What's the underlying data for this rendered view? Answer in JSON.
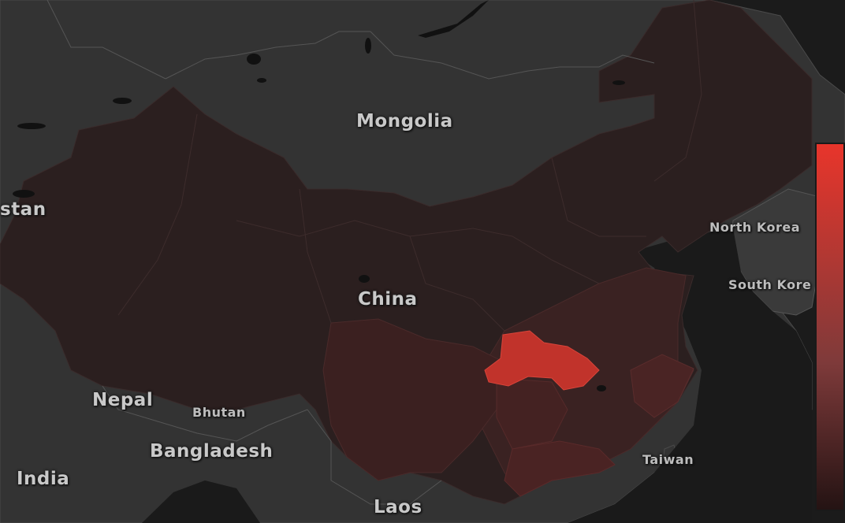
{
  "map": {
    "countries": {
      "mongolia": "Mongolia",
      "china": "China",
      "nepal": "Nepal",
      "bhutan": "Bhutan",
      "bangladesh": "Bangladesh",
      "india": "India",
      "laos": "Laos",
      "north_korea": "North Korea",
      "south_korea": "South Kore",
      "taiwan": "Taiwan",
      "stan": "stan"
    },
    "colors": {
      "background_land": "#333333",
      "sea": "#1a1a1a",
      "china_base": "#2c1e1e",
      "hubei_highlight": "#c1332b",
      "scale_max": "#e8352b",
      "scale_min": "#2a1414"
    }
  },
  "legend": {
    "type": "vertical-gradient",
    "from": "#e8352b",
    "to": "#241313"
  }
}
